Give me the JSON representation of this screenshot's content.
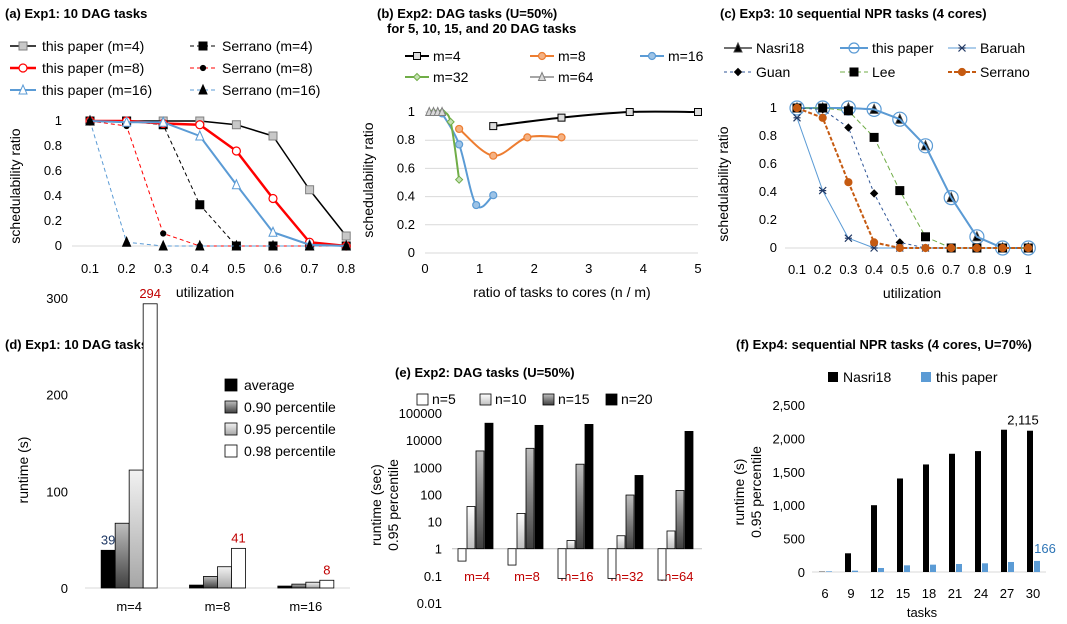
{
  "colors": {
    "black": "#000000",
    "red": "#ff0000",
    "blue": "#5b9bd5",
    "gray": "#808080",
    "orange": "#ed7d31",
    "green": "#70ad47",
    "brown": "#c55a11",
    "darkred": "#c00000",
    "navy": "#1f3864"
  },
  "chart_data": [
    {
      "id": "a",
      "type": "line",
      "title": "(a) Exp1: 10 DAG tasks",
      "xlabel": "utilization",
      "ylabel": "schedulability ratio",
      "x": [
        0.1,
        0.2,
        0.3,
        0.4,
        0.5,
        0.6,
        0.7,
        0.8
      ],
      "x_ticks": [
        "0.1",
        "0.2",
        "0.3",
        "0.4",
        "0.5",
        "0.6",
        "0.7",
        "0.8"
      ],
      "y_ticks": [
        "0",
        "0.2",
        "0.4",
        "0.6",
        "0.8",
        "1"
      ],
      "ylim": [
        0,
        1
      ],
      "grid": false,
      "legend": "top",
      "series": [
        {
          "name": "this paper (m=4)",
          "values": [
            1,
            1,
            1,
            1,
            0.97,
            0.88,
            0.45,
            0.08
          ]
        },
        {
          "name": "Serrano (m=4)",
          "values": [
            1,
            1,
            0.97,
            0.33,
            0,
            0,
            0,
            0
          ]
        },
        {
          "name": "this paper (m=8)",
          "values": [
            1,
            1,
            0.98,
            0.97,
            0.76,
            0.38,
            0.03,
            0
          ]
        },
        {
          "name": "Serrano (m=8)",
          "values": [
            1,
            0.96,
            0.1,
            0,
            0,
            0,
            0,
            0
          ]
        },
        {
          "name": "this paper (m=16)",
          "values": [
            1,
            0.99,
            0.99,
            0.88,
            0.49,
            0.11,
            0.01,
            0
          ]
        },
        {
          "name": "Serrano (m=16)",
          "values": [
            1,
            0.03,
            0,
            0,
            0,
            0,
            0,
            0
          ]
        }
      ]
    },
    {
      "id": "b",
      "type": "scatter",
      "title": "(b) Exp2: DAG tasks (U=50%)",
      "subtitle": "for 5, 10, 15, and 20 DAG tasks",
      "xlabel": "ratio of tasks to cores (n / m)",
      "ylabel": "schedulability ratio",
      "x_ticks": [
        "0",
        "1",
        "2",
        "3",
        "4",
        "5"
      ],
      "y_ticks": [
        "0",
        "0.2",
        "0.4",
        "0.6",
        "0.8",
        "1"
      ],
      "xlim": [
        0,
        5
      ],
      "ylim": [
        0,
        1
      ],
      "grid": true,
      "legend": "top",
      "series": [
        {
          "name": "m=4",
          "x": [
            1.25,
            2.5,
            3.75,
            5
          ],
          "y": [
            0.9,
            0.96,
            1,
            1
          ]
        },
        {
          "name": "m=8",
          "x": [
            0.625,
            1.25,
            1.875,
            2.5
          ],
          "y": [
            0.88,
            0.69,
            0.82,
            0.82
          ]
        },
        {
          "name": "m=16",
          "x": [
            0.3125,
            0.625,
            0.9375,
            1.25
          ],
          "y": [
            0.99,
            0.77,
            0.34,
            0.41
          ]
        },
        {
          "name": "m=32",
          "x": [
            0.156,
            0.3125,
            0.469,
            0.625
          ],
          "y": [
            1,
            1,
            0.93,
            0.52
          ]
        },
        {
          "name": "m=64",
          "x": [
            0.078,
            0.156,
            0.234,
            0.3125
          ],
          "y": [
            1,
            1,
            1,
            1
          ]
        }
      ]
    },
    {
      "id": "c",
      "type": "line",
      "title": "(c) Exp3: 10 sequential NPR tasks (4 cores)",
      "xlabel": "utilization",
      "ylabel": "schedulability ratio",
      "x": [
        0.1,
        0.2,
        0.3,
        0.4,
        0.5,
        0.6,
        0.7,
        0.8,
        0.9,
        1
      ],
      "x_ticks": [
        "0.1",
        "0.2",
        "0.3",
        "0.4",
        "0.5",
        "0.6",
        "0.7",
        "0.8",
        "0.9",
        "1"
      ],
      "y_ticks": [
        "0",
        "0.2",
        "0.4",
        "0.6",
        "0.8",
        "1"
      ],
      "ylim": [
        0,
        1
      ],
      "grid": false,
      "legend": "top",
      "series": [
        {
          "name": "Nasri18",
          "values": [
            1,
            1,
            1,
            0.99,
            0.92,
            0.73,
            0.36,
            0.08,
            0,
            0
          ]
        },
        {
          "name": "this paper",
          "values": [
            1,
            1,
            1,
            0.99,
            0.92,
            0.73,
            0.36,
            0.08,
            0,
            0
          ]
        },
        {
          "name": "Baruah",
          "values": [
            0.93,
            0.41,
            0.07,
            0,
            0,
            0,
            0,
            0,
            0,
            0
          ]
        },
        {
          "name": "Guan",
          "values": [
            1,
            0.99,
            0.86,
            0.39,
            0.04,
            0,
            0,
            0,
            0,
            0
          ]
        },
        {
          "name": "Lee",
          "values": [
            1,
            1,
            0.98,
            0.79,
            0.41,
            0.08,
            0,
            0,
            0,
            0
          ]
        },
        {
          "name": "Serrano",
          "values": [
            1,
            0.93,
            0.47,
            0.04,
            0,
            0,
            0,
            0,
            0,
            0
          ]
        }
      ]
    },
    {
      "id": "d",
      "type": "bar",
      "title": "(d) Exp1: 10 DAG tasks",
      "xlabel": "",
      "ylabel": "runtime (s)",
      "categories": [
        "m=4",
        "m=8",
        "m=16"
      ],
      "y_ticks": [
        "0",
        "100",
        "200",
        "300"
      ],
      "ylim": [
        0,
        300
      ],
      "legend": "top-right",
      "series": [
        {
          "name": "average",
          "values": [
            39,
            3,
            2
          ]
        },
        {
          "name": "0.90 percentile",
          "values": [
            67,
            12,
            4
          ]
        },
        {
          "name": "0.95 percentile",
          "values": [
            122,
            22,
            6
          ]
        },
        {
          "name": "0.98 percentile",
          "values": [
            294,
            41,
            8
          ]
        }
      ],
      "data_labels": [
        "39",
        "294",
        "41",
        "8"
      ]
    },
    {
      "id": "e",
      "type": "bar",
      "title": "(e) Exp2: DAG tasks (U=50%)",
      "xlabel": "",
      "ylabel": "runtime (sec) 0.95 percentile",
      "ylabel_lines": [
        "runtime (sec)",
        "0.95 percentile"
      ],
      "categories": [
        "m=4",
        "m=8",
        "m=16",
        "m=32",
        "m=64"
      ],
      "y_ticks": [
        "0.01",
        "0.1",
        "1",
        "10",
        "100",
        "1000",
        "10000",
        "100000"
      ],
      "yscale": "log",
      "ylim": [
        0.01,
        100000
      ],
      "legend": "top",
      "series": [
        {
          "name": "n=5",
          "values": [
            0.35,
            0.25,
            0.08,
            0.08,
            0.07
          ]
        },
        {
          "name": "n=10",
          "values": [
            36,
            20,
            2,
            3,
            4.5
          ]
        },
        {
          "name": "n=15",
          "values": [
            4000,
            5000,
            1300,
            95,
            140
          ]
        },
        {
          "name": "n=20",
          "values": [
            42000,
            35000,
            38000,
            500,
            21000
          ]
        }
      ]
    },
    {
      "id": "f",
      "type": "bar",
      "title": "(f) Exp4: sequential NPR tasks (4 cores, U=70%)",
      "xlabel": "tasks",
      "ylabel": "runtime (s) 0.95 percentile",
      "ylabel_lines": [
        "runtime (s)",
        "0.95 percentile"
      ],
      "categories": [
        "6",
        "9",
        "12",
        "15",
        "18",
        "21",
        "24",
        "27",
        "30"
      ],
      "y_ticks": [
        "0",
        "500",
        "1,000",
        "1,500",
        "2,000",
        "2,500"
      ],
      "ylim": [
        0,
        2500
      ],
      "legend": "top",
      "series": [
        {
          "name": "Nasri18",
          "values": [
            5,
            280,
            1000,
            1400,
            1610,
            1770,
            1810,
            2130,
            2115
          ]
        },
        {
          "name": "this paper",
          "values": [
            10,
            20,
            60,
            100,
            110,
            120,
            130,
            150,
            166
          ]
        }
      ],
      "data_labels": [
        "2,115",
        "166"
      ]
    }
  ]
}
